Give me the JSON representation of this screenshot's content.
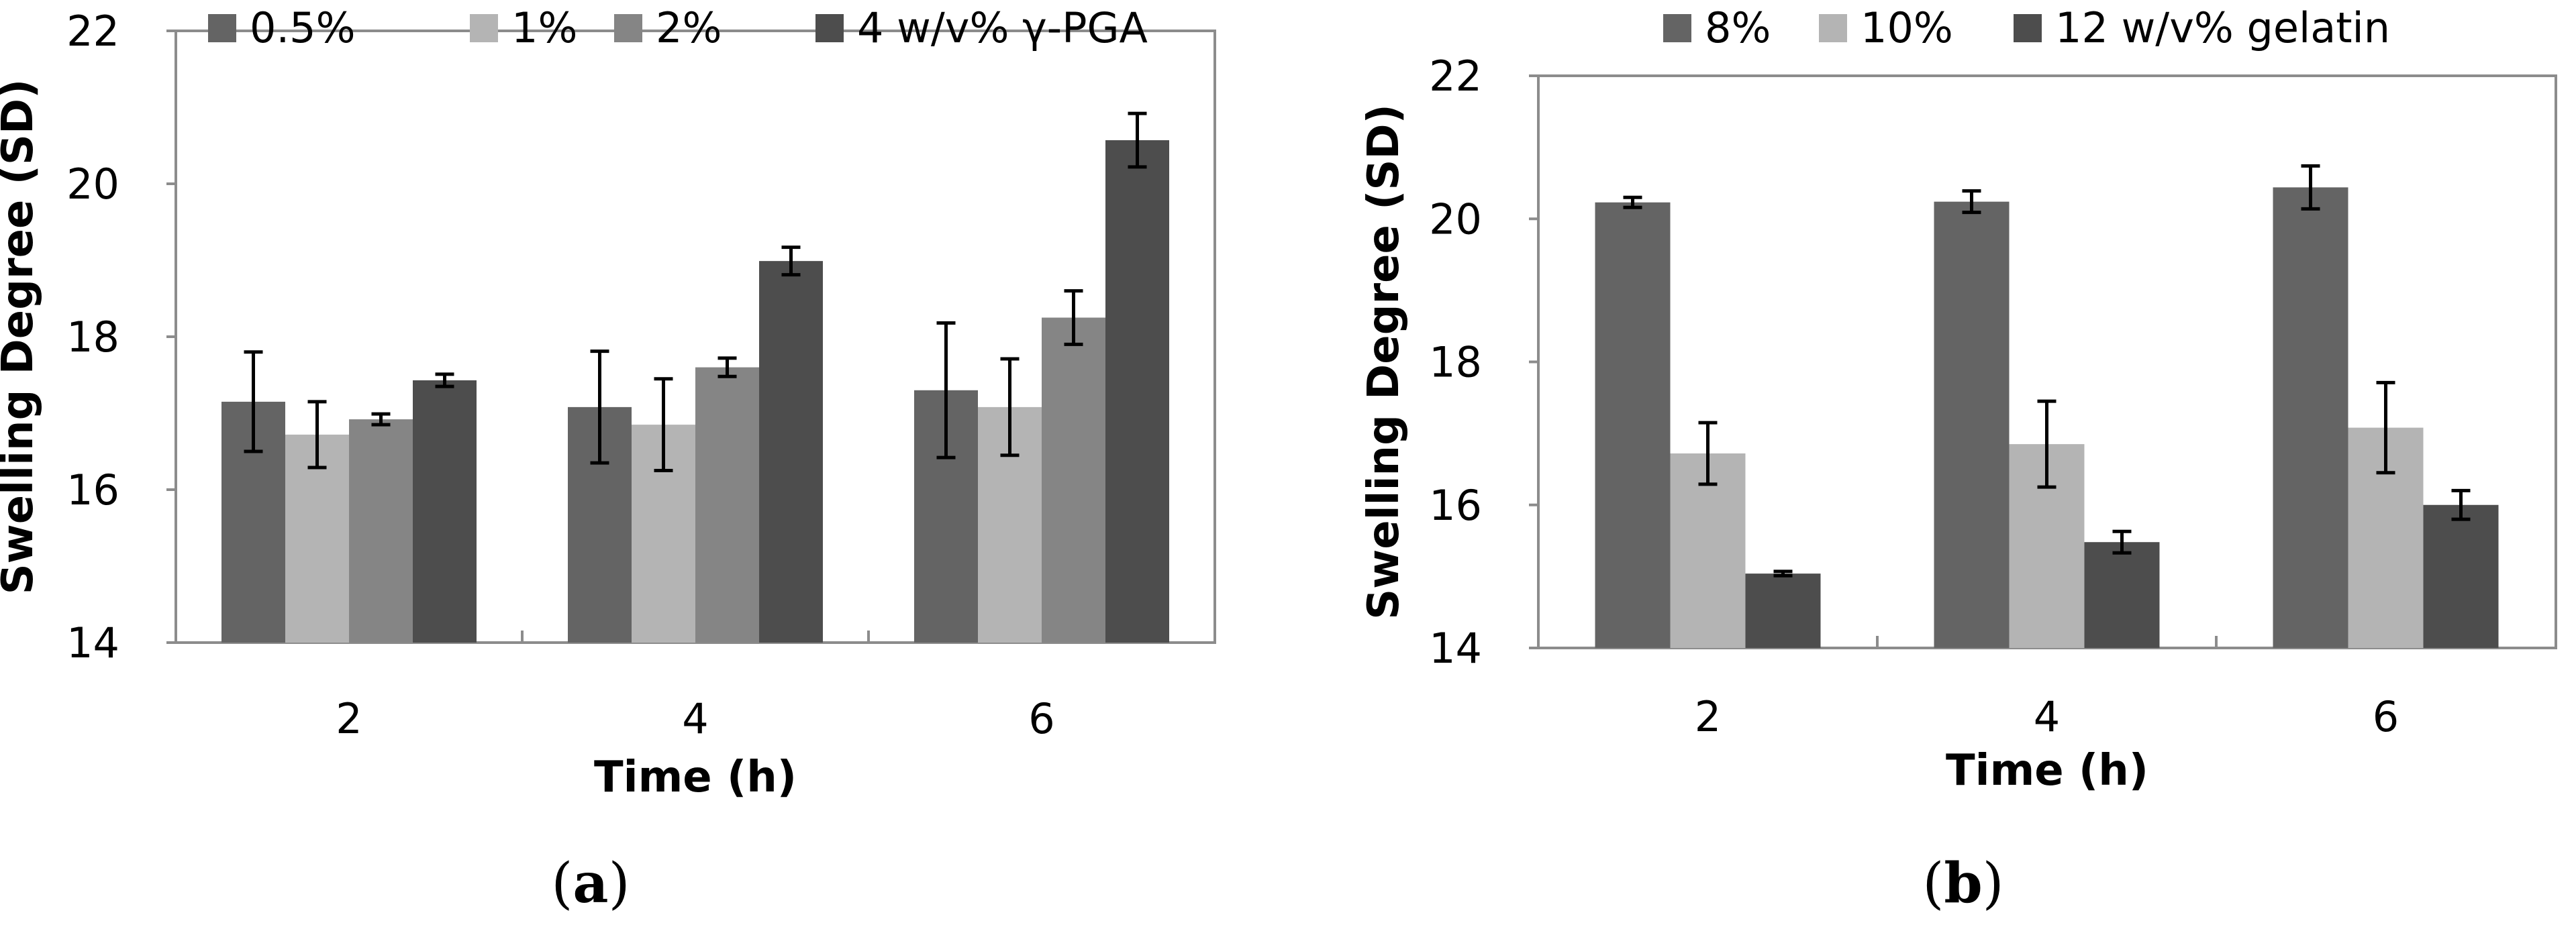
{
  "chart_data": [
    {
      "type": "bar",
      "panel_label": "a",
      "xlabel": "Time (h)",
      "ylabel": "Swelling Degree (SD)",
      "ylim": [
        14,
        22
      ],
      "ytick_step": 2,
      "categories": [
        "2",
        "4",
        "6"
      ],
      "legend_position": "top",
      "series": [
        {
          "name": "0.5%",
          "color": "#646464",
          "values": [
            17.15,
            17.08,
            17.3
          ],
          "errors": [
            0.65,
            0.73,
            0.88
          ]
        },
        {
          "name": "1%",
          "color": "#b4b4b4",
          "values": [
            16.72,
            16.85,
            17.08
          ],
          "errors": [
            0.43,
            0.6,
            0.63
          ]
        },
        {
          "name": "2%",
          "color": "#858585",
          "values": [
            16.92,
            17.6,
            18.25
          ],
          "errors": [
            0.07,
            0.12,
            0.35
          ]
        },
        {
          "name": "4 w/v% γ-PGA",
          "color": "#4d4d4d",
          "values": [
            17.43,
            18.99,
            20.57
          ],
          "errors": [
            0.08,
            0.18,
            0.35
          ]
        }
      ]
    },
    {
      "type": "bar",
      "panel_label": "b",
      "xlabel": "Time (h)",
      "ylabel": "Swelling Degree (SD)",
      "ylim": [
        14,
        22
      ],
      "ytick_step": 2,
      "categories": [
        "2",
        "4",
        "6"
      ],
      "legend_position": "top",
      "series": [
        {
          "name": "8%",
          "color": "#646464",
          "values": [
            20.23,
            20.24,
            20.44
          ],
          "errors": [
            0.07,
            0.15,
            0.3
          ]
        },
        {
          "name": "10%",
          "color": "#b4b4b4",
          "values": [
            16.72,
            16.85,
            17.08
          ],
          "errors": [
            0.43,
            0.6,
            0.63
          ]
        },
        {
          "name": "12 w/v% gelatin",
          "color": "#4d4d4d",
          "values": [
            15.04,
            15.48,
            16.0
          ],
          "errors": [
            0.03,
            0.15,
            0.2
          ]
        }
      ]
    }
  ]
}
